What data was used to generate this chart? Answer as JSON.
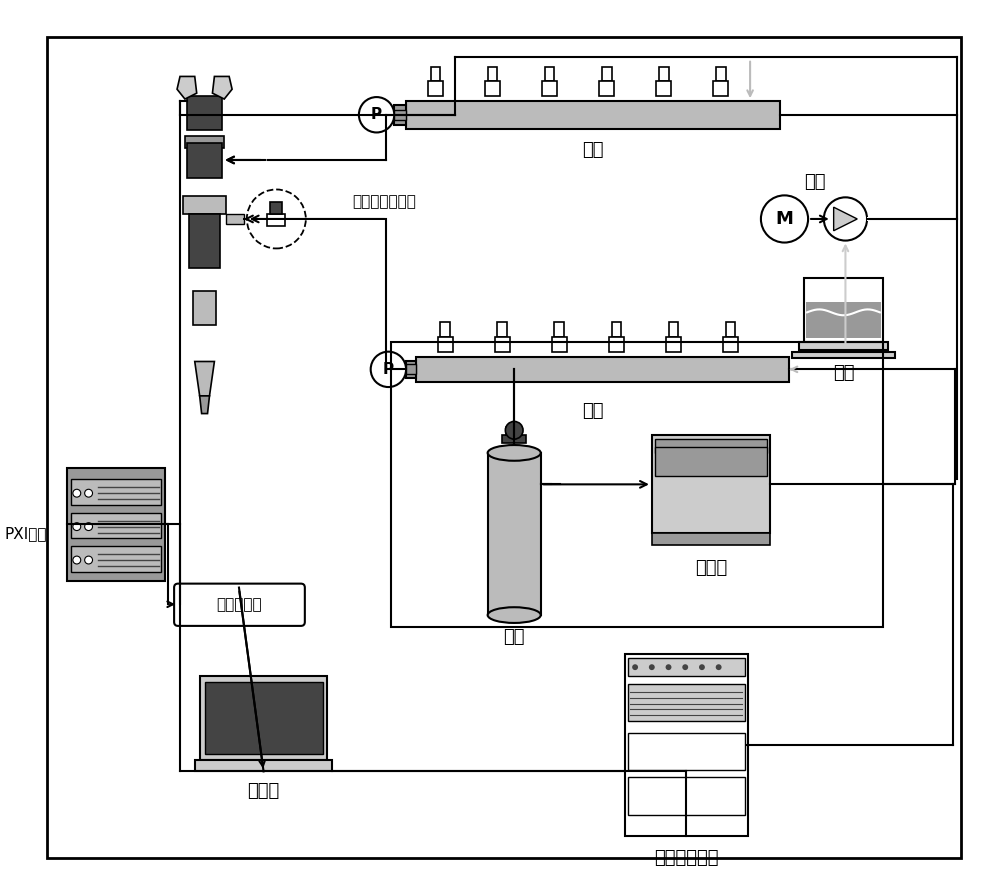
{
  "bg": "#ffffff",
  "lc": "#000000",
  "lgc": "#cccccc",
  "mgc": "#999999",
  "dgc": "#444444",
  "slgc": "#bbbbbb",
  "figsize": [
    10.0,
    8.94
  ],
  "dpi": 100,
  "labels": {
    "oil_rail": "油轨",
    "oil_pump": "油泵",
    "oil_source": "油源",
    "gas_rail": "气轨",
    "gas_source": "气源",
    "compressor": "压气机",
    "pressure_control": "压力控制装置",
    "upper_computer": "上位机",
    "amplifier": "放大器模块",
    "pxi": "PXI触发",
    "inlet_sensor": "入口压力传感器"
  }
}
